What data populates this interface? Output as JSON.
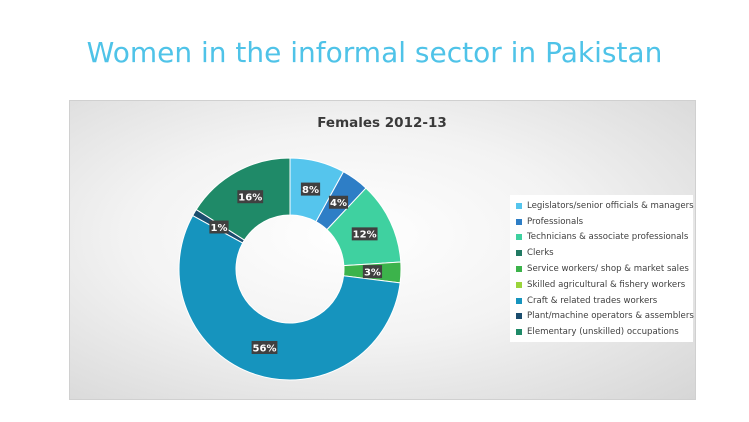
{
  "page_title": "Women in the informal sector in Pakistan",
  "chart_data": {
    "type": "pie",
    "variant": "donut",
    "title": "Females 2012-13",
    "legend_position": "right",
    "categories": [
      "Legislators/senior officials & managers",
      "Professionals",
      "Technicians & associate professionals",
      "Clerks",
      "Service workers/ shop & market sales",
      "Skilled agricultural & fishery workers",
      "Craft & related trades workers",
      "Plant/machine operators & assemblers",
      "Elementary (unskilled) occupations"
    ],
    "values": [
      8,
      4,
      12,
      0,
      3,
      0,
      56,
      1,
      16
    ],
    "data_labels": [
      "8%",
      "4%",
      "12%",
      "",
      "3%",
      "",
      "56%",
      "1%",
      "16%"
    ],
    "colors": [
      "#55c5ed",
      "#2e7ec6",
      "#3fd1a0",
      "#217a63",
      "#3cb34b",
      "#9bd53b",
      "#1694be",
      "#1b4d6e",
      "#1f8a68"
    ]
  }
}
